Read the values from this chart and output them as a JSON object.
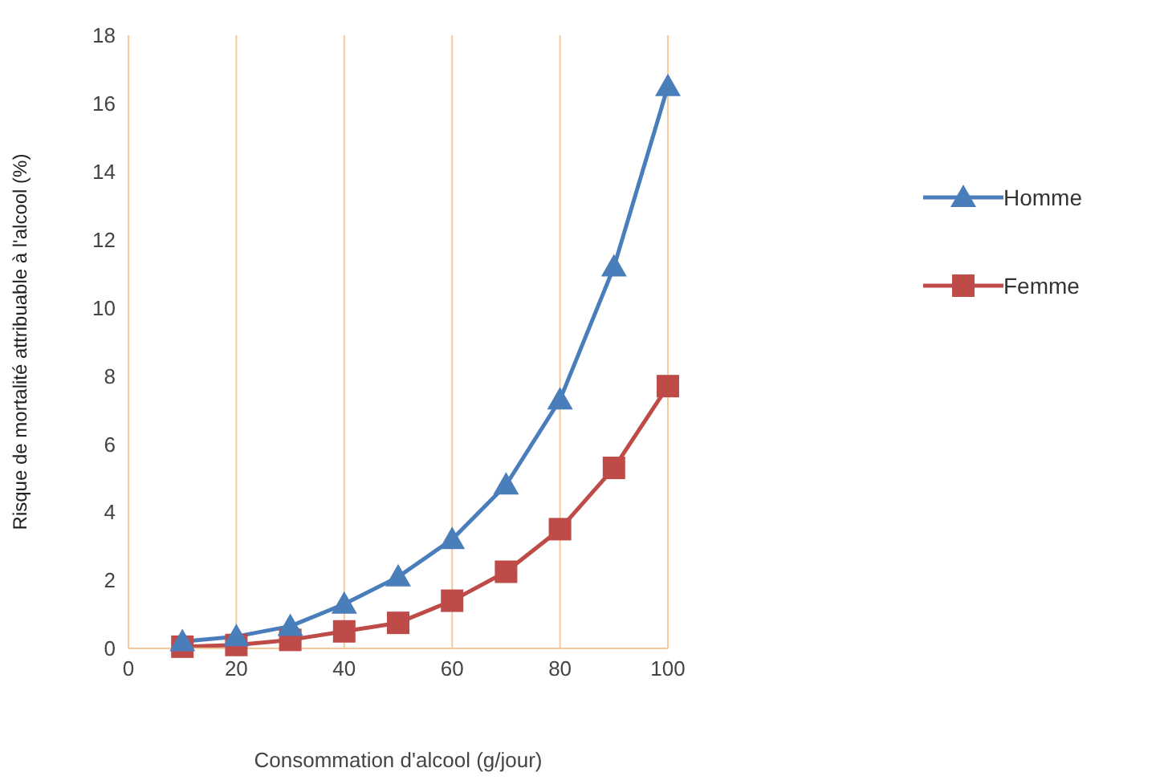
{
  "chart_data": {
    "type": "line",
    "xlabel": "Consommation d'alcool (g/jour)",
    "ylabel": "Risque de mortalité attribuable à l'alcool (%)",
    "x": [
      10,
      20,
      30,
      40,
      50,
      60,
      70,
      80,
      90,
      100
    ],
    "series": [
      {
        "name": "Homme",
        "color": "#4a7ebb",
        "marker": "triangle",
        "values": [
          0.2,
          0.35,
          0.65,
          1.3,
          2.1,
          3.2,
          4.8,
          7.3,
          11.2,
          16.5
        ]
      },
      {
        "name": "Femme",
        "color": "#be4b48",
        "marker": "square",
        "values": [
          0.05,
          0.1,
          0.25,
          0.5,
          0.75,
          1.4,
          2.25,
          3.5,
          5.3,
          7.7
        ]
      }
    ],
    "xlim": [
      0,
      100
    ],
    "xticks": [
      0,
      20,
      40,
      60,
      80,
      100
    ],
    "ylim": [
      0,
      18
    ],
    "yticks": [
      0,
      2,
      4,
      6,
      8,
      10,
      12,
      14,
      16,
      18
    ],
    "grid": "x",
    "legend": "right",
    "line_style": "solid"
  }
}
